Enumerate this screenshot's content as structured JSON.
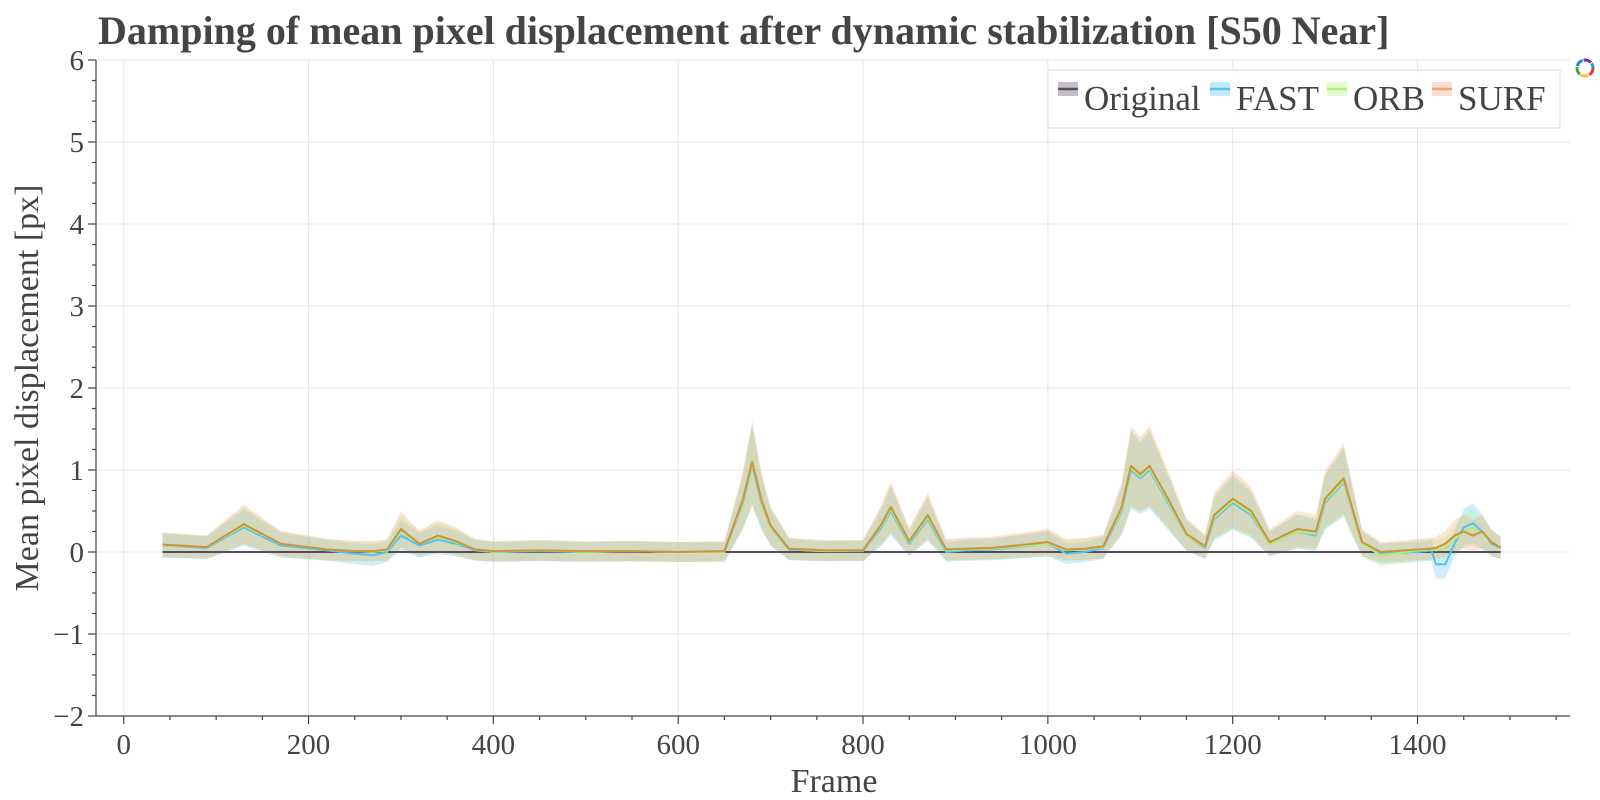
{
  "chart_data": {
    "type": "line",
    "title": "Damping of mean pixel displacement after dynamic stabilization [S50 Near]",
    "xlabel": "Frame",
    "ylabel": "Mean pixel displacement [px]",
    "xlim": [
      -30,
      1565
    ],
    "ylim": [
      -2,
      6
    ],
    "xticks": [
      0,
      200,
      400,
      600,
      800,
      1000,
      1200,
      1400
    ],
    "xtick_labels": [
      "0",
      "200",
      "400",
      "600",
      "800",
      "1000",
      "1200",
      "1400"
    ],
    "yticks": [
      -2,
      -1,
      0,
      1,
      2,
      3,
      4,
      5,
      6
    ],
    "ytick_labels": [
      "−2",
      "−1",
      "0",
      "1",
      "2",
      "3",
      "4",
      "5",
      "6"
    ],
    "grid": true,
    "legend_position": "top-right",
    "series": [
      {
        "name": "Original",
        "color": "#5a4a5e",
        "x": [
          42,
          1490
        ],
        "y": [
          0,
          0
        ]
      },
      {
        "name": "FAST",
        "color": "#4fc3f7",
        "x": [
          42,
          90,
          130,
          170,
          220,
          250,
          270,
          285,
          300,
          320,
          340,
          360,
          380,
          400,
          450,
          500,
          550,
          600,
          650,
          670,
          680,
          690,
          700,
          720,
          740,
          760,
          800,
          820,
          830,
          850,
          870,
          890,
          910,
          940,
          1000,
          1020,
          1040,
          1060,
          1080,
          1090,
          1100,
          1110,
          1130,
          1150,
          1170,
          1180,
          1200,
          1220,
          1240,
          1270,
          1290,
          1300,
          1320,
          1340,
          1360,
          1400,
          1415,
          1420,
          1430,
          1440,
          1450,
          1460,
          1470,
          1480,
          1490
        ],
        "y": [
          0.08,
          0.05,
          0.3,
          0.08,
          0.02,
          -0.02,
          -0.04,
          0.0,
          0.2,
          0.08,
          0.15,
          0.1,
          0.02,
          0.0,
          0.01,
          0.0,
          0.01,
          0.0,
          0.0,
          0.6,
          1.05,
          0.6,
          0.3,
          0.03,
          0.02,
          0.01,
          0.01,
          0.3,
          0.5,
          0.1,
          0.4,
          0.0,
          0.02,
          0.03,
          0.1,
          -0.02,
          0.0,
          0.05,
          0.5,
          1.0,
          0.9,
          1.0,
          0.6,
          0.2,
          0.05,
          0.4,
          0.6,
          0.45,
          0.1,
          0.25,
          0.2,
          0.6,
          0.85,
          0.1,
          -0.02,
          0.0,
          0.02,
          -0.15,
          -0.15,
          0.1,
          0.3,
          0.35,
          0.25,
          0.1,
          0.05
        ]
      },
      {
        "name": "ORB",
        "color": "#b2ec7a",
        "x": [
          42,
          90,
          130,
          170,
          220,
          250,
          270,
          285,
          300,
          320,
          340,
          360,
          380,
          400,
          450,
          500,
          550,
          600,
          650,
          670,
          680,
          690,
          700,
          720,
          740,
          760,
          800,
          820,
          830,
          850,
          870,
          890,
          910,
          940,
          1000,
          1020,
          1040,
          1060,
          1080,
          1090,
          1100,
          1110,
          1130,
          1150,
          1170,
          1180,
          1200,
          1220,
          1240,
          1270,
          1290,
          1300,
          1320,
          1340,
          1360,
          1400,
          1415,
          1420,
          1430,
          1440,
          1450,
          1460,
          1470,
          1480,
          1490
        ],
        "y": [
          0.08,
          0.06,
          0.32,
          0.1,
          0.03,
          0.01,
          0.0,
          0.02,
          0.25,
          0.1,
          0.18,
          0.12,
          0.03,
          0.0,
          0.02,
          0.0,
          0.01,
          0.0,
          0.0,
          0.62,
          1.07,
          0.62,
          0.3,
          0.04,
          0.02,
          0.01,
          0.02,
          0.32,
          0.52,
          0.12,
          0.42,
          0.02,
          0.03,
          0.04,
          0.1,
          0.02,
          0.03,
          0.06,
          0.52,
          1.02,
          0.92,
          1.02,
          0.62,
          0.2,
          0.06,
          0.42,
          0.62,
          0.47,
          0.1,
          0.25,
          0.22,
          0.62,
          0.86,
          0.1,
          -0.04,
          0.02,
          0.03,
          0.02,
          0.05,
          0.15,
          0.25,
          0.3,
          0.22,
          0.12,
          0.05
        ]
      },
      {
        "name": "SURF",
        "color": "#f4a27a",
        "x": [
          42,
          90,
          130,
          170,
          220,
          250,
          270,
          285,
          300,
          320,
          340,
          360,
          380,
          400,
          450,
          500,
          550,
          600,
          650,
          670,
          680,
          690,
          700,
          720,
          740,
          760,
          800,
          820,
          830,
          850,
          870,
          890,
          910,
          940,
          1000,
          1020,
          1040,
          1060,
          1080,
          1090,
          1100,
          1110,
          1130,
          1150,
          1170,
          1180,
          1200,
          1220,
          1240,
          1270,
          1290,
          1300,
          1320,
          1340,
          1360,
          1400,
          1415,
          1420,
          1430,
          1440,
          1450,
          1460,
          1470,
          1480,
          1490
        ],
        "y": [
          0.09,
          0.06,
          0.34,
          0.1,
          0.03,
          0.01,
          0.01,
          0.03,
          0.28,
          0.1,
          0.2,
          0.13,
          0.03,
          0.01,
          0.02,
          0.01,
          0.01,
          0.0,
          0.01,
          0.64,
          1.1,
          0.64,
          0.32,
          0.04,
          0.03,
          0.02,
          0.02,
          0.34,
          0.55,
          0.13,
          0.45,
          0.03,
          0.04,
          0.05,
          0.12,
          0.03,
          0.04,
          0.07,
          0.55,
          1.05,
          0.95,
          1.05,
          0.65,
          0.22,
          0.07,
          0.45,
          0.65,
          0.5,
          0.12,
          0.28,
          0.25,
          0.65,
          0.9,
          0.12,
          0.0,
          0.03,
          0.04,
          0.05,
          0.1,
          0.2,
          0.25,
          0.2,
          0.25,
          0.12,
          0.05
        ]
      }
    ]
  }
}
